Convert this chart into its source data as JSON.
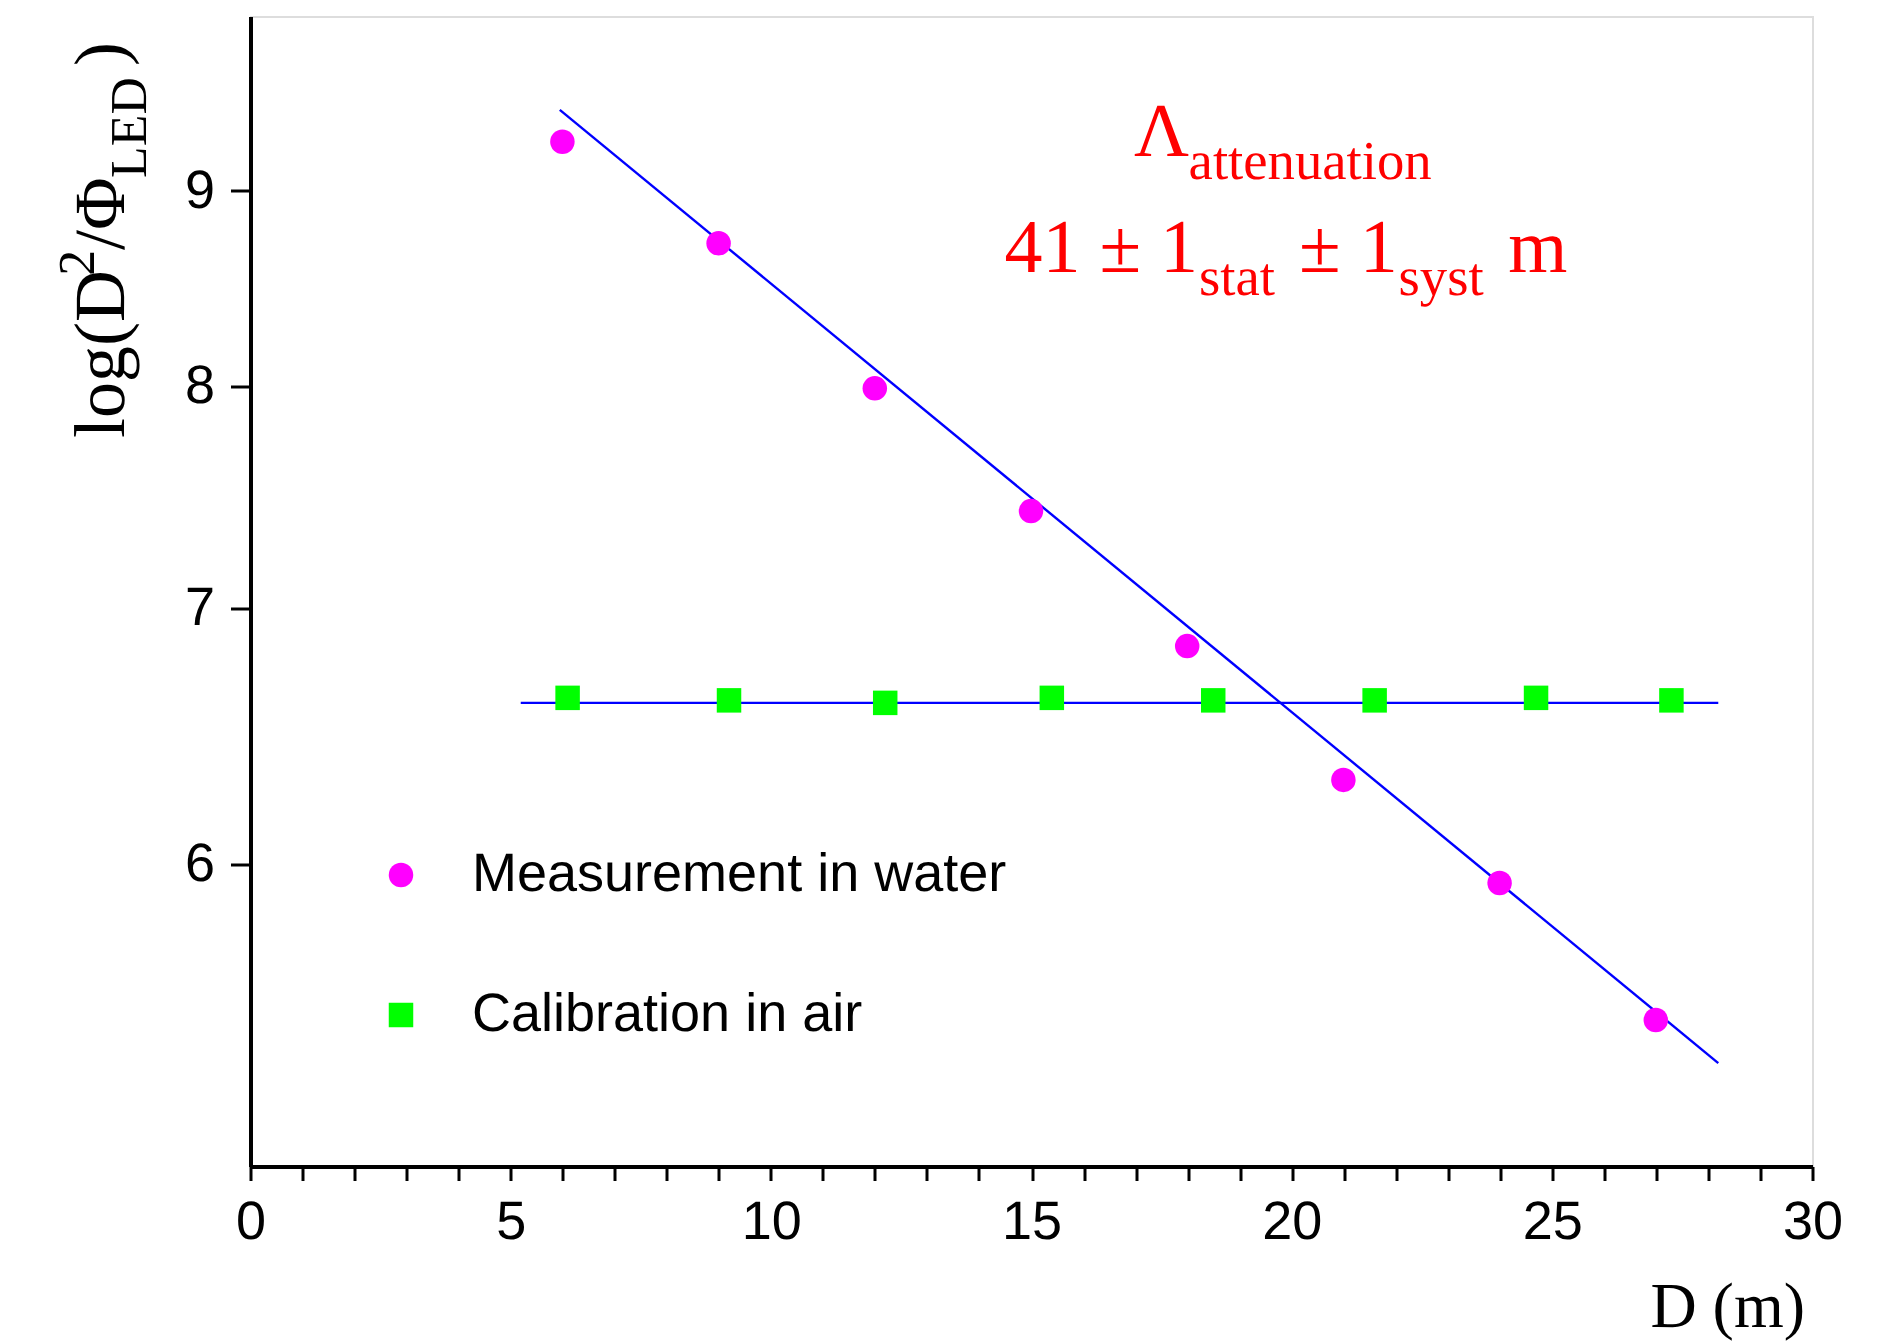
{
  "chart_data": {
    "type": "scatter",
    "xlabel": "D (m)",
    "ylabel": "log(D$^{2}$/Φ$_{LED}$)",
    "annotations": [
      "Λ$_{attenuation}$",
      "41 ± 1$_{stat}$ ± 1$_{syst}$ m"
    ],
    "xlim": [
      0,
      30
    ],
    "ylim": [
      5,
      10
    ],
    "log": "y",
    "xticks": [
      0,
      {
        "value": 1,
        "label": null
      },
      {
        "value": 2,
        "label": null
      },
      {
        "value": 3,
        "label": null
      },
      {
        "value": 4,
        "label": null
      },
      5,
      {
        "value": 6,
        "label": null
      },
      {
        "value": 7,
        "label": null
      },
      {
        "value": 8,
        "label": null
      },
      {
        "value": 9,
        "label": null
      },
      10,
      {
        "value": 11,
        "label": null
      },
      {
        "value": 12,
        "label": null
      },
      {
        "value": 13,
        "label": null
      },
      {
        "value": 14,
        "label": null
      },
      15,
      {
        "value": 16,
        "label": null
      },
      {
        "value": 17,
        "label": null
      },
      {
        "value": 18,
        "label": null
      },
      {
        "value": 19,
        "label": null
      },
      20,
      {
        "value": 21,
        "label": null
      },
      {
        "value": 22,
        "label": null
      },
      {
        "value": 23,
        "label": null
      },
      {
        "value": 24,
        "label": null
      },
      25,
      {
        "value": 26,
        "label": null
      },
      {
        "value": 27,
        "label": null
      },
      {
        "value": 28,
        "label": null
      },
      {
        "value": 29,
        "label": null
      },
      30
    ],
    "yticks": [
      6,
      7,
      8,
      9
    ],
    "grid": false,
    "legend": "bottom left",
    "series": [
      {
        "name": "Measurement in water",
        "marker": "circle",
        "color": "#ff00ff",
        "x": [
          6,
          9,
          12,
          15,
          18,
          21,
          24,
          27
        ],
        "values": [
          9.27,
          8.72,
          7.99,
          7.42,
          6.84,
          6.31,
          5.93,
          5.46
        ]
      },
      {
        "name": "Calibration in air",
        "marker": "square",
        "color": "#00ff00",
        "x": [
          6.1,
          9.2,
          12.2,
          15.4,
          18.5,
          21.6,
          24.7,
          27.3
        ],
        "values": [
          6.63,
          6.62,
          6.61,
          6.63,
          6.62,
          6.62,
          6.63,
          6.62
        ]
      },
      {
        "type": "line",
        "color": "#0000ff",
        "x": [
          5.95,
          28.2
        ],
        "values": [
          9.45,
          5.32
        ]
      },
      {
        "type": "line",
        "color": "#0000ff",
        "x": [
          5.2,
          28.2
        ],
        "values": [
          6.61,
          6.61
        ]
      }
    ]
  }
}
